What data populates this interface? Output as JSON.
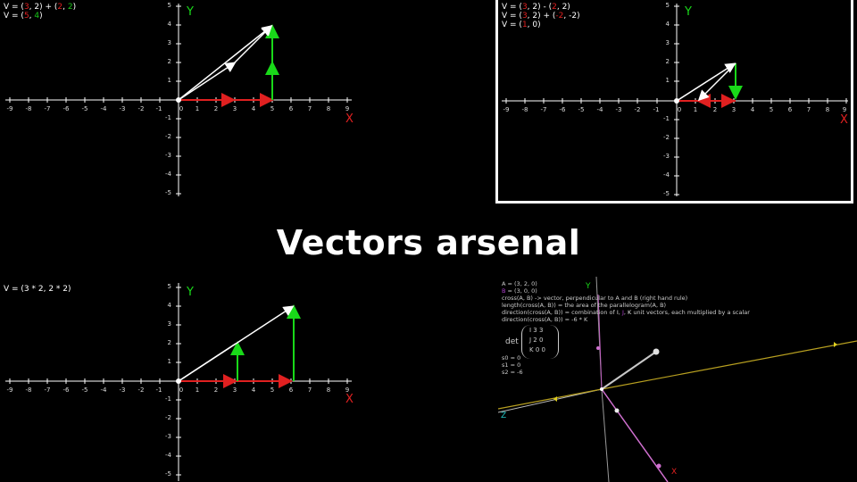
{
  "title": "Vectors arsenal",
  "colors": {
    "x_axis": "#e02020",
    "y_axis": "#19d919",
    "vector": "#ffffff",
    "background": "#000000"
  },
  "axes": {
    "x_label": "X",
    "y_label": "Y",
    "x_ticks": [
      "-9",
      "-8",
      "-7",
      "-6",
      "-5",
      "-4",
      "-3",
      "-2",
      "-1",
      "0",
      "1",
      "2",
      "3",
      "4",
      "5",
      "6",
      "7",
      "8",
      "9"
    ],
    "y_ticks": [
      "5",
      "4",
      "3",
      "2",
      "1",
      "-1",
      "-2",
      "-3",
      "-4",
      "-5"
    ]
  },
  "panel_add": {
    "line1_prefix": "V = (",
    "line1_a1": "3",
    "line1_a_rest": ", 2) + (",
    "line1_b1": "2",
    "line1_b_mid": ", ",
    "line1_b2": "2",
    "line1_end": ")",
    "line2_prefix": "V = (",
    "line2_a": "5",
    "line2_b": "4",
    "line2_end": ")"
  },
  "panel_sub": {
    "line1_prefix": "V = (",
    "line1_a": "3",
    "line1_mid": ", 2) - (",
    "line1_b": "2",
    "line1_b_rest": ", 2)",
    "line2_prefix": "V = (",
    "line2_a": "3",
    "line2_mid": ", 2) + (",
    "line2_b": "-2",
    "line2_end": ", -2)",
    "line3_prefix": "V = (",
    "line3_a": "1",
    "line3_end": ", 0)"
  },
  "panel_scale": {
    "line1": "V = (3 * 2, 2 * 2)"
  },
  "panel_cross": {
    "a_line": "A = (3, 2, 0)",
    "b_prefix": "B",
    "b_rest": " = (3, 0, 0)",
    "line3": "cross(A, B) -> vector, perpendicular to A and B (right hand rule)",
    "line4": "length(cross(A, B)) = the area of the parallelogram(A, B)",
    "line5_prefix": "direction(cross(A, B)) = combination of ",
    "line5_i": "I",
    "line5_j": "J",
    "line5_k": "K",
    "line5_rest": " unit vectors, each multiplied by a scalar",
    "line6": "direction(cross(A, B)) = -6 * K",
    "det_label": "det",
    "det_row1": "I  3  3",
    "det_row2": "J  2  0",
    "det_row3": "K  0  0",
    "s0": "s0 = 0",
    "s1": "s1 = 0",
    "s2": "s2 = -6",
    "axis_y": "Y",
    "axis_z": "Z",
    "axis_x": "X"
  }
}
